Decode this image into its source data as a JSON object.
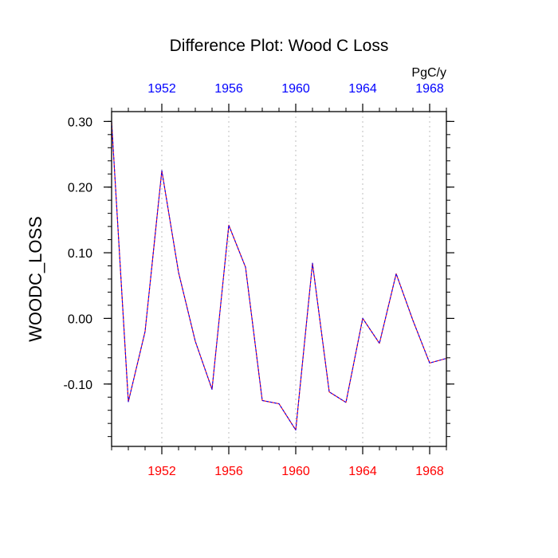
{
  "chart_data": {
    "type": "line",
    "title": "Difference Plot: Wood C Loss",
    "ylabel": "WOODC_LOSS",
    "units_label": "PgC/y",
    "xlim": [
      1949,
      1969
    ],
    "ylim": [
      -0.195,
      0.315
    ],
    "x_ticks": [
      {
        "value": 1952,
        "label": "1952"
      },
      {
        "value": 1956,
        "label": "1956"
      },
      {
        "value": 1960,
        "label": "1960"
      },
      {
        "value": 1964,
        "label": "1964"
      },
      {
        "value": 1968,
        "label": "1968"
      }
    ],
    "y_ticks": [
      {
        "value": 0.3,
        "label": "0.30"
      },
      {
        "value": 0.2,
        "label": "0.20"
      },
      {
        "value": 0.1,
        "label": "0.10"
      },
      {
        "value": 0.0,
        "label": "0.00"
      },
      {
        "value": -0.1,
        "label": "-0.10"
      }
    ],
    "grid": "vertical dotted at major x ticks",
    "colors": {
      "top_axis_labels": "#0000ff",
      "bottom_axis_labels": "#ff0000",
      "series_a": "#ff0000",
      "series_b": "#0000ff",
      "grid": "#c8c8c8"
    },
    "series": [
      {
        "line_style": "solid",
        "color": "#ff0000",
        "x": [
          1949,
          1950,
          1951,
          1952,
          1953,
          1954,
          1955,
          1956,
          1957,
          1958,
          1959,
          1960,
          1961,
          1962,
          1963,
          1964,
          1965,
          1966,
          1967,
          1968,
          1969
        ],
        "y": [
          0.3,
          -0.127,
          -0.02,
          0.225,
          0.07,
          -0.035,
          -0.108,
          0.142,
          0.078,
          -0.125,
          -0.13,
          -0.17,
          0.084,
          -0.112,
          -0.128,
          0.0,
          -0.038,
          0.068,
          -0.003,
          -0.068,
          -0.061
        ]
      },
      {
        "line_style": "dashed",
        "color": "#0000ff",
        "x": [
          1949,
          1950,
          1951,
          1952,
          1953,
          1954,
          1955,
          1956,
          1957,
          1958,
          1959,
          1960,
          1961,
          1962,
          1963,
          1964,
          1965,
          1966,
          1967,
          1968,
          1969
        ],
        "y": [
          0.3,
          -0.127,
          -0.02,
          0.225,
          0.07,
          -0.035,
          -0.108,
          0.142,
          0.078,
          -0.125,
          -0.13,
          -0.17,
          0.084,
          -0.112,
          -0.128,
          0.0,
          -0.038,
          0.068,
          -0.003,
          -0.068,
          -0.061
        ]
      }
    ]
  }
}
